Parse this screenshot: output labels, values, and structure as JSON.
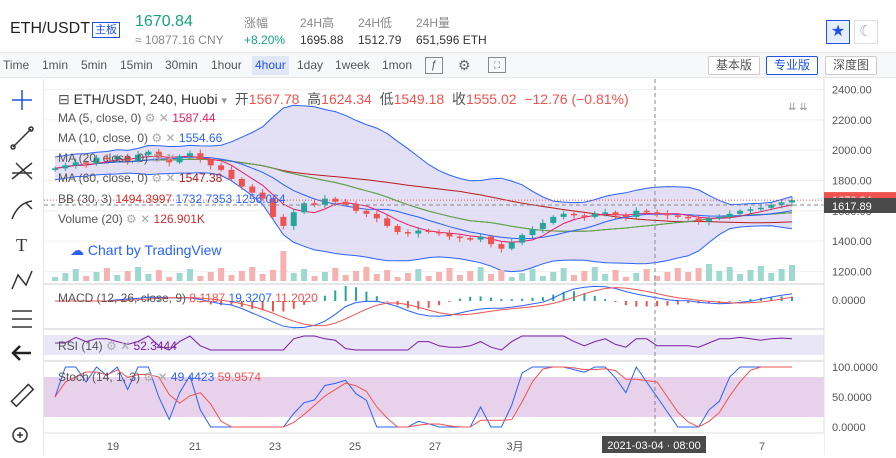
{
  "header": {
    "pair": "ETH/USDT",
    "board_badge": "主板",
    "price": "1670.84",
    "price_cny": "≈ 10877.16 CNY",
    "stats": [
      {
        "label": "涨幅",
        "value": "+8.20%"
      },
      {
        "label": "24H高",
        "value": "1695.88"
      },
      {
        "label": "24H低",
        "value": "1512.79"
      },
      {
        "label": "24H量",
        "value": "651,596 ETH"
      }
    ]
  },
  "toolbar": {
    "timeframes": [
      "Time",
      "1min",
      "5min",
      "15min",
      "30min",
      "1hour",
      "4hour",
      "1day",
      "1week",
      "1mon"
    ],
    "active_timeframe": "4hour",
    "view_buttons": [
      "基本版",
      "专业版",
      "深度图"
    ],
    "active_view": "专业版"
  },
  "legend": {
    "symbol": "ETH/USDT, 240, Huobi",
    "ohlc": [
      {
        "label": "开",
        "value": "1567.78"
      },
      {
        "label": "高",
        "value": "1624.34"
      },
      {
        "label": "低",
        "value": "1549.18"
      },
      {
        "label": "收",
        "value": "1555.02"
      }
    ],
    "change": "−12.76 (−0.81%)",
    "indicators": [
      {
        "name": "MA (5, close, 0)",
        "value": "1587.44",
        "color": "#e91e63"
      },
      {
        "name": "MA (10, close, 0)",
        "value": "1554.66",
        "color": "#2962ff"
      },
      {
        "name": "MA (20, close, 0)",
        "value": "",
        "color": "#4caf50"
      },
      {
        "name": "MA (60, close, 0)",
        "value": "1547.38",
        "color": "#b71c1c"
      },
      {
        "name": "BB (30, 3)",
        "value": "1494.3997",
        "value2": "1732.7353",
        "value3": "1256.064",
        "color": "#2962ff"
      },
      {
        "name": "Volume (20)",
        "value": "126.901K",
        "color": "#d32f2f"
      }
    ],
    "watermark": "Chart by TradingView"
  },
  "panes": {
    "macd": {
      "label": "MACD (12, 26, close, 9)",
      "v1": "8.1187",
      "v2": "19.3207",
      "v3": "11.2020"
    },
    "rsi": {
      "label": "RSI (14)",
      "value": "52.3444"
    },
    "stoch": {
      "label": "Stoch (14, 1, 3)",
      "v1": "49.4423",
      "v2": "59.9574"
    }
  },
  "price_axis": {
    "ticks": [
      "2400.00",
      "2200.00",
      "2000.00",
      "1800.00",
      "1600.00",
      "1400.00",
      "1200.00"
    ],
    "last_price": "1670.84",
    "crosshair_price": "1617.89",
    "macd_tick": "0.0000",
    "stoch_ticks": [
      "100.0000",
      "50.0000",
      "0.0000"
    ]
  },
  "time_axis": {
    "labels": [
      "19",
      "21",
      "23",
      "25",
      "27",
      "3月",
      "5",
      "7"
    ],
    "crosshair": "2021-03-04 · 08:00"
  },
  "colors": {
    "up": "#26a69a",
    "down": "#ef5350",
    "accent": "#1e53e5",
    "bb_fill": "#d9d6f2"
  },
  "chart_data": {
    "type": "candlestick",
    "title": "ETH/USDT, 240, Huobi",
    "ylim": [
      1150,
      2450
    ],
    "closes": [
      1880,
      1900,
      1920,
      1910,
      1950,
      1940,
      1960,
      1930,
      1970,
      1990,
      1950,
      1920,
      1960,
      1980,
      1940,
      1900,
      1870,
      1810,
      1760,
      1720,
      1680,
      1560,
      1500,
      1590,
      1650,
      1640,
      1680,
      1660,
      1640,
      1600,
      1580,
      1550,
      1500,
      1460,
      1450,
      1470,
      1460,
      1450,
      1430,
      1420,
      1410,
      1430,
      1380,
      1350,
      1390,
      1440,
      1480,
      1520,
      1560,
      1580,
      1570,
      1560,
      1580,
      1590,
      1570,
      1560,
      1600,
      1590,
      1580,
      1570,
      1560,
      1550,
      1530,
      1550,
      1560,
      1580,
      1600,
      1610,
      1620,
      1640,
      1655,
      1670
    ]
  }
}
